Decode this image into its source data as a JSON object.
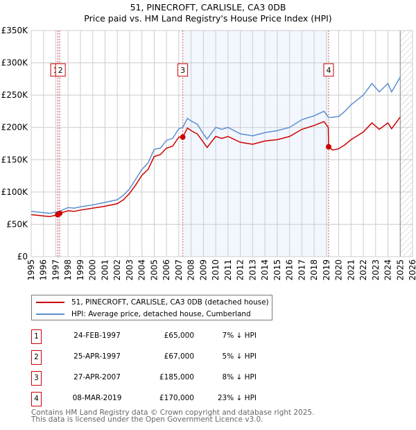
{
  "title_line1": "51, PINECROFT, CARLISLE, CA3 0DB",
  "title_line2": "Price paid vs. HM Land Registry's House Price Index (HPI)",
  "chart_data": {
    "type": "line",
    "xlim": [
      1995,
      2026
    ],
    "ylim": [
      0,
      350000
    ],
    "x_ticks": [
      "1995",
      "1996",
      "1997",
      "1998",
      "1999",
      "2000",
      "2001",
      "2002",
      "2003",
      "2004",
      "2005",
      "2006",
      "2007",
      "2008",
      "2009",
      "2010",
      "2011",
      "2012",
      "2013",
      "2014",
      "2015",
      "2016",
      "2017",
      "2018",
      "2019",
      "2020",
      "2021",
      "2022",
      "2023",
      "2024",
      "2025",
      "2026"
    ],
    "y_ticks": [
      {
        "v": 0,
        "label": "£0"
      },
      {
        "v": 50000,
        "label": "£50K"
      },
      {
        "v": 100000,
        "label": "£100K"
      },
      {
        "v": 150000,
        "label": "£150K"
      },
      {
        "v": 200000,
        "label": "£200K"
      },
      {
        "v": 250000,
        "label": "£250K"
      },
      {
        "v": 300000,
        "label": "£300K"
      },
      {
        "v": 350000,
        "label": "£350K"
      }
    ],
    "grid": true,
    "series": [
      {
        "name": "51, PINECROFT, CARLISLE, CA3 0DB (detached house)",
        "color": "#cc0000",
        "points": [
          [
            1995,
            65000
          ],
          [
            1995.5,
            64000
          ],
          [
            1996,
            63000
          ],
          [
            1996.5,
            62000
          ],
          [
            1997,
            64000
          ],
          [
            1997.15,
            65000
          ],
          [
            1997.3,
            67000
          ],
          [
            1998,
            71000
          ],
          [
            1998.5,
            70000
          ],
          [
            1999,
            72000
          ],
          [
            2000,
            75000
          ],
          [
            2001,
            78000
          ],
          [
            2002,
            82000
          ],
          [
            2002.5,
            88000
          ],
          [
            2003,
            98000
          ],
          [
            2003.5,
            111000
          ],
          [
            2004,
            126000
          ],
          [
            2004.5,
            135000
          ],
          [
            2005,
            155000
          ],
          [
            2005.5,
            158000
          ],
          [
            2006,
            168000
          ],
          [
            2006.5,
            171000
          ],
          [
            2007,
            185000
          ],
          [
            2007.32,
            185000
          ],
          [
            2007.7,
            199000
          ],
          [
            2008,
            195000
          ],
          [
            2008.5,
            190000
          ],
          [
            2009,
            177000
          ],
          [
            2009.3,
            169000
          ],
          [
            2010,
            186000
          ],
          [
            2010.5,
            183000
          ],
          [
            2011,
            186000
          ],
          [
            2012,
            177000
          ],
          [
            2013,
            174000
          ],
          [
            2014,
            179000
          ],
          [
            2015,
            181000
          ],
          [
            2016,
            186000
          ],
          [
            2017,
            197000
          ],
          [
            2018,
            203000
          ],
          [
            2018.8,
            209000
          ],
          [
            2019.15,
            200000
          ],
          [
            2019.18,
            170000
          ],
          [
            2019.5,
            165000
          ],
          [
            2020,
            167000
          ],
          [
            2020.5,
            173000
          ],
          [
            2021,
            181000
          ],
          [
            2022,
            193000
          ],
          [
            2022.7,
            207000
          ],
          [
            2023.3,
            197000
          ],
          [
            2024,
            207000
          ],
          [
            2024.3,
            198000
          ],
          [
            2025,
            216000
          ]
        ]
      },
      {
        "name": "HPI: Average price, detached house, Cumberland",
        "color": "#5b8fd0",
        "points": [
          [
            1995,
            70000
          ],
          [
            1995.5,
            69000
          ],
          [
            1996,
            68000
          ],
          [
            1996.5,
            67000
          ],
          [
            1997,
            69000
          ],
          [
            1997.3,
            70000
          ],
          [
            1998,
            76000
          ],
          [
            1998.5,
            75000
          ],
          [
            1999,
            77000
          ],
          [
            2000,
            80000
          ],
          [
            2001,
            84000
          ],
          [
            2002,
            88000
          ],
          [
            2002.5,
            95000
          ],
          [
            2003,
            105000
          ],
          [
            2003.5,
            120000
          ],
          [
            2004,
            135000
          ],
          [
            2004.5,
            145000
          ],
          [
            2005,
            166000
          ],
          [
            2005.5,
            168000
          ],
          [
            2006,
            180000
          ],
          [
            2006.5,
            183000
          ],
          [
            2007,
            198000
          ],
          [
            2007.32,
            200000
          ],
          [
            2007.7,
            214000
          ],
          [
            2008,
            210000
          ],
          [
            2008.5,
            205000
          ],
          [
            2009,
            190000
          ],
          [
            2009.3,
            182000
          ],
          [
            2010,
            200000
          ],
          [
            2010.5,
            197000
          ],
          [
            2011,
            200000
          ],
          [
            2012,
            190000
          ],
          [
            2013,
            187000
          ],
          [
            2014,
            192000
          ],
          [
            2015,
            195000
          ],
          [
            2016,
            200000
          ],
          [
            2017,
            212000
          ],
          [
            2018,
            218000
          ],
          [
            2018.8,
            225000
          ],
          [
            2019.2,
            215000
          ],
          [
            2020,
            217000
          ],
          [
            2020.5,
            225000
          ],
          [
            2021,
            235000
          ],
          [
            2022,
            250000
          ],
          [
            2022.7,
            268000
          ],
          [
            2023.3,
            255000
          ],
          [
            2024,
            268000
          ],
          [
            2024.3,
            255000
          ],
          [
            2025,
            278000
          ]
        ]
      }
    ],
    "sales": [
      {
        "n": "1",
        "x": 1997.15,
        "y": 65000
      },
      {
        "n": "2",
        "x": 1997.32,
        "y": 67000
      },
      {
        "n": "3",
        "x": 2007.32,
        "y": 185000
      },
      {
        "n": "4",
        "x": 2019.18,
        "y": 170000
      }
    ],
    "marker_label_value": 290000,
    "forecast_start": 2025.0
  },
  "legend": {
    "red_label": "51, PINECROFT, CARLISLE, CA3 0DB (detached house)",
    "blue_label": "HPI: Average price, detached house, Cumberland"
  },
  "table": [
    {
      "n": "1",
      "date": "24-FEB-1997",
      "price": "£65,000",
      "hpi": "7% ↓ HPI"
    },
    {
      "n": "2",
      "date": "25-APR-1997",
      "price": "£67,000",
      "hpi": "5% ↓ HPI"
    },
    {
      "n": "3",
      "date": "27-APR-2007",
      "price": "£185,000",
      "hpi": "8% ↓ HPI"
    },
    {
      "n": "4",
      "date": "08-MAR-2019",
      "price": "£170,000",
      "hpi": "23% ↓ HPI"
    }
  ],
  "footer1": "Contains HM Land Registry data © Crown copyright and database right 2025.",
  "footer2": "This data is licensed under the Open Government Licence v3.0."
}
